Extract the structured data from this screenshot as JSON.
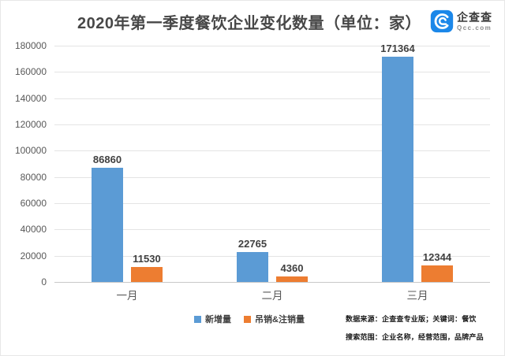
{
  "header": {
    "logo": {
      "brand": "企查查",
      "domain": "Qcc.com",
      "icon_color": "#1b87e9"
    }
  },
  "chart_data": {
    "type": "bar",
    "title": "2020年第一季度餐饮企业变化数量（单位：家）",
    "categories": [
      "一月",
      "二月",
      "三月"
    ],
    "series": [
      {
        "name": "新增量",
        "color": "#5B9BD5",
        "values": [
          86860,
          22765,
          171364
        ]
      },
      {
        "name": "吊销&注销量",
        "color": "#ED7D31",
        "values": [
          11530,
          4360,
          12344
        ]
      }
    ],
    "ylim": [
      0,
      180000
    ],
    "yticks": [
      0,
      20000,
      40000,
      60000,
      80000,
      100000,
      120000,
      140000,
      160000,
      180000
    ],
    "grid": true,
    "legend_position": "bottom"
  },
  "footnotes": {
    "line1": "数据来源：企查查专业版；关键词：餐饮",
    "line2": "搜索范围：企业名称，经营范围，品牌产品"
  }
}
